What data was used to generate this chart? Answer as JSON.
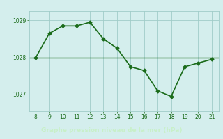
{
  "x": [
    8,
    9,
    10,
    11,
    12,
    13,
    14,
    15,
    16,
    17,
    18,
    19,
    20,
    21
  ],
  "y": [
    1028.0,
    1028.65,
    1028.85,
    1028.85,
    1028.95,
    1028.5,
    1028.25,
    1027.75,
    1027.65,
    1027.1,
    1026.95,
    1027.75,
    1027.85,
    1027.95
  ],
  "hline_y": 1028.0,
  "line_color": "#1a6b1a",
  "hline_color": "#1a6b1a",
  "bg_color": "#d4eeed",
  "grid_color": "#a0ccc8",
  "tick_label_color": "#1a6b1a",
  "xlabel": "Graphe pression niveau de la mer (hPa)",
  "xlabel_bg": "#3a7a3a",
  "xlabel_color": "#c8f0c8",
  "xlim": [
    7.5,
    21.5
  ],
  "ylim": [
    1026.55,
    1029.25
  ],
  "yticks": [
    1027,
    1028,
    1029
  ],
  "xticks": [
    8,
    9,
    10,
    11,
    12,
    13,
    14,
    15,
    16,
    17,
    18,
    19,
    20,
    21
  ],
  "marker": "D",
  "marker_size": 2.5,
  "linewidth": 1.2
}
